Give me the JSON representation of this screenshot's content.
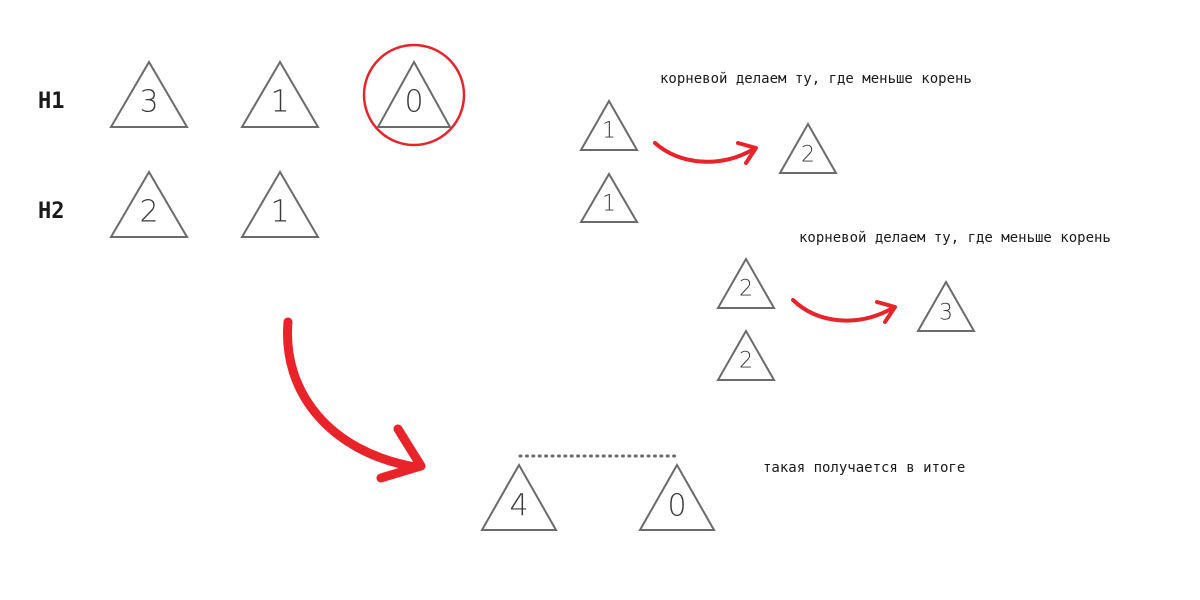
{
  "heaps": {
    "h1": {
      "label": "H1",
      "trees": [
        "3",
        "1",
        "0"
      ]
    },
    "h2": {
      "label": "H2",
      "trees": [
        "2",
        "1"
      ]
    }
  },
  "merge_step_1": {
    "note": "корневой делаем ту, где меньше корень",
    "top": "1",
    "bottom": "1",
    "result": "2"
  },
  "merge_step_2": {
    "note": "корневой делаем ту, где меньше корень",
    "top": "2",
    "bottom": "2",
    "result": "3"
  },
  "final": {
    "note": "такая получается в итоге",
    "trees": [
      "4",
      "0"
    ]
  },
  "colors": {
    "accent": "#e8242a",
    "stroke": "#6b6b6b"
  }
}
